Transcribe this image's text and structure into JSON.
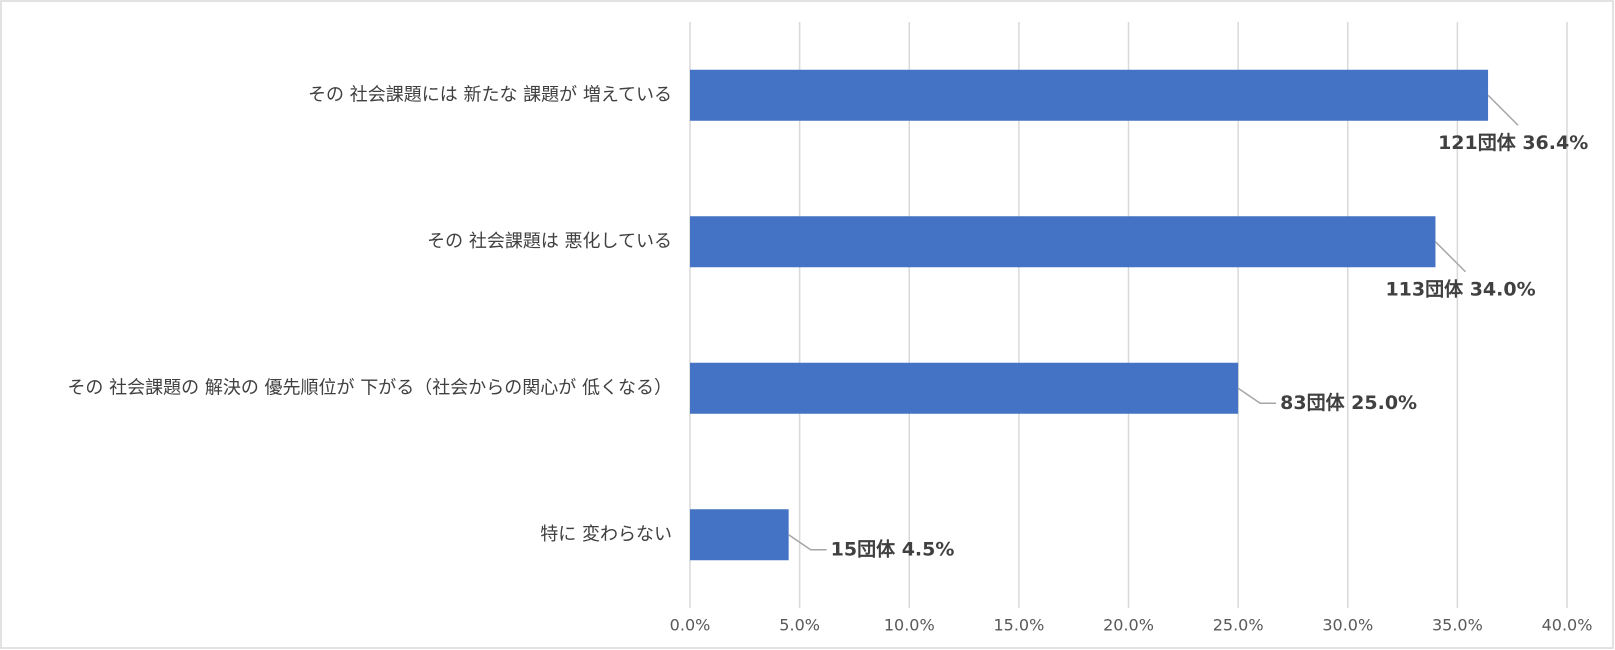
{
  "chart_data": {
    "type": "bar",
    "orientation": "horizontal",
    "categories": [
      "その 社会課題には 新たな 課題が 増えている",
      "その 社会課題は 悪化している",
      "その 社会課題の 解決の 優先順位が 下がる（社会からの関心が 低くなる）",
      "特に 変わらない"
    ],
    "values": [
      36.4,
      34.0,
      25.0,
      4.5
    ],
    "value_labels": [
      "121団体  36.4%",
      "113団体  34.0%",
      "83団体  25.0%",
      "15団体  4.5%"
    ],
    "color": "#4472c4",
    "xlim": [
      0,
      40
    ],
    "xticks": [
      {
        "value": 0,
        "label": "0.0%"
      },
      {
        "value": 5,
        "label": "5.0%"
      },
      {
        "value": 10,
        "label": "10.0%"
      },
      {
        "value": 15,
        "label": "15.0%"
      },
      {
        "value": 20,
        "label": "20.0%"
      },
      {
        "value": 25,
        "label": "25.0%"
      },
      {
        "value": 30,
        "label": "30.0%"
      },
      {
        "value": 35,
        "label": "35.0%"
      },
      {
        "value": 40,
        "label": "40.0%"
      }
    ],
    "grid": true
  }
}
